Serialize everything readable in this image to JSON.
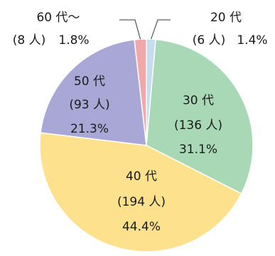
{
  "chart_data": {
    "type": "pie",
    "title": "",
    "start_angle_deg": 0,
    "direction": "clockwise",
    "slices": [
      {
        "category": "20代",
        "line1": "20 代",
        "line2": "(6 人)",
        "line3": "1.4%",
        "count": 6,
        "percent": 1.4,
        "color": "#c6dcef"
      },
      {
        "category": "30代",
        "line1": "30 代",
        "line2": "(136 人)",
        "line3": "31.1%",
        "count": 136,
        "percent": 31.1,
        "color": "#a9d8b6"
      },
      {
        "category": "40代",
        "line1": "40 代",
        "line2": "(194 人)",
        "line3": "44.4%",
        "count": 194,
        "percent": 44.4,
        "color": "#fde18c"
      },
      {
        "category": "50代",
        "line1": "50 代",
        "line2": "(93 人)",
        "line3": "21.3%",
        "count": 93,
        "percent": 21.3,
        "color": "#a9a7d5"
      },
      {
        "category": "60代〜",
        "line1": "60 代〜",
        "line2": "(8 人)",
        "line3": "1.8%",
        "count": 8,
        "percent": 1.8,
        "color": "#f2a8a8"
      }
    ]
  }
}
